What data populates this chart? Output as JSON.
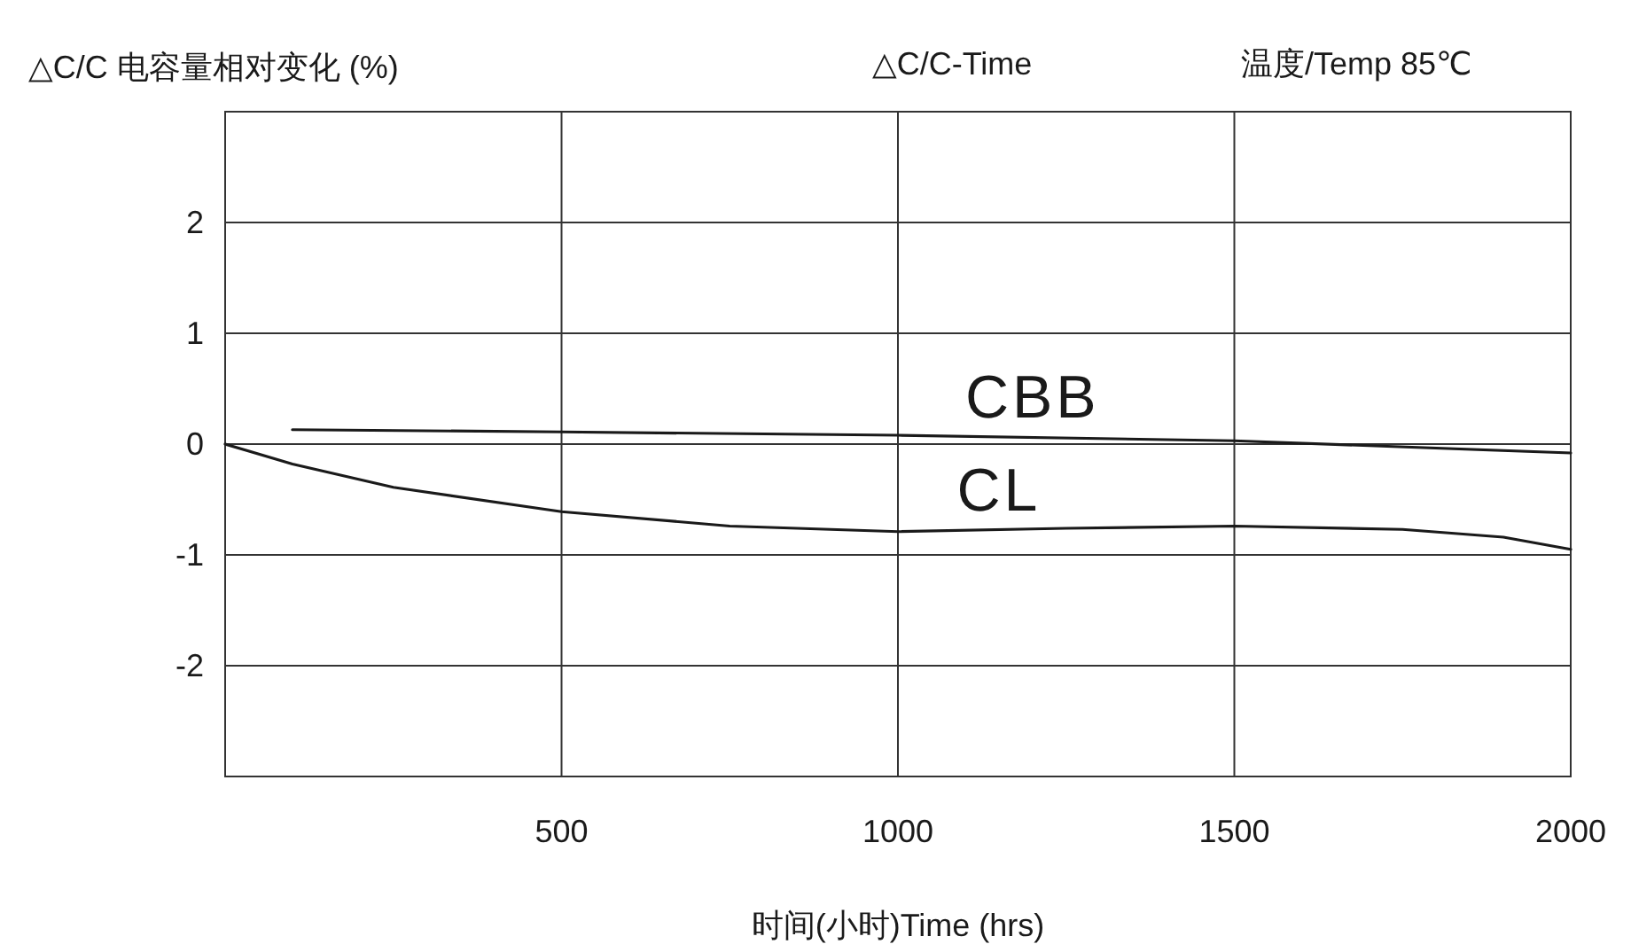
{
  "chart_data": {
    "type": "line",
    "title": "△C/C-Time",
    "subtitle": "温度/Temp 85℃",
    "xlabel": "时间(小时)Time (hrs)",
    "ylabel": "△C/C 电容量相对变化 (%)",
    "xlim": [
      0,
      2000
    ],
    "xticks": [
      {
        "value": 0,
        "label": null
      },
      500,
      1000,
      1500,
      2000
    ],
    "ylim": [
      -3,
      3
    ],
    "yticks": [
      -2,
      -1,
      0,
      1,
      2
    ],
    "grid": true,
    "series": [
      {
        "name": "CBB",
        "color": "#1a1a1a",
        "x": [
          100,
          500,
          1000,
          1500,
          2000
        ],
        "values": [
          0.13,
          0.11,
          0.08,
          0.03,
          -0.08
        ]
      },
      {
        "name": "CL",
        "color": "#1a1a1a",
        "x": [
          0,
          100,
          250,
          500,
          750,
          1000,
          1250,
          1500,
          1750,
          1900,
          2000
        ],
        "values": [
          0,
          -0.18,
          -0.39,
          -0.61,
          -0.74,
          -0.79,
          -0.76,
          -0.74,
          -0.77,
          -0.84,
          -0.95
        ]
      }
    ]
  }
}
